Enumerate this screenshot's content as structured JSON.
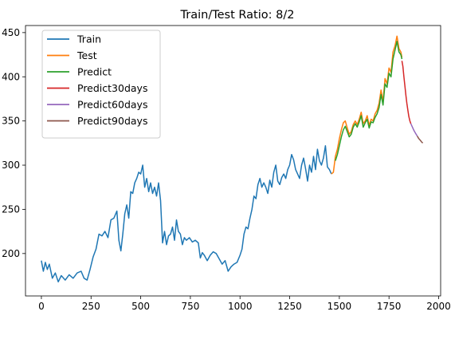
{
  "chart_data": {
    "type": "line",
    "title": "Train/Test Ratio: 8/2",
    "xlabel": "",
    "ylabel": "",
    "xlim": [
      -80,
      2010
    ],
    "ylim": [
      152,
      458
    ],
    "xticks": [
      0,
      250,
      500,
      750,
      1000,
      1250,
      1500,
      1750,
      2000
    ],
    "yticks": [
      200,
      250,
      300,
      350,
      400,
      450
    ],
    "grid": false,
    "legend_position": "top-left",
    "series": [
      {
        "name": "Train",
        "color": "#1f77b4",
        "points": [
          [
            0,
            192
          ],
          [
            10,
            180
          ],
          [
            20,
            190
          ],
          [
            30,
            182
          ],
          [
            40,
            188
          ],
          [
            55,
            172
          ],
          [
            70,
            178
          ],
          [
            85,
            168
          ],
          [
            100,
            175
          ],
          [
            120,
            170
          ],
          [
            140,
            176
          ],
          [
            160,
            172
          ],
          [
            180,
            178
          ],
          [
            200,
            180
          ],
          [
            215,
            172
          ],
          [
            230,
            170
          ],
          [
            245,
            182
          ],
          [
            260,
            196
          ],
          [
            275,
            205
          ],
          [
            290,
            222
          ],
          [
            305,
            220
          ],
          [
            320,
            225
          ],
          [
            335,
            218
          ],
          [
            350,
            238
          ],
          [
            365,
            240
          ],
          [
            380,
            248
          ],
          [
            390,
            215
          ],
          [
            400,
            203
          ],
          [
            410,
            222
          ],
          [
            420,
            245
          ],
          [
            430,
            255
          ],
          [
            440,
            240
          ],
          [
            450,
            270
          ],
          [
            460,
            268
          ],
          [
            470,
            280
          ],
          [
            480,
            285
          ],
          [
            490,
            292
          ],
          [
            500,
            290
          ],
          [
            510,
            300
          ],
          [
            520,
            275
          ],
          [
            530,
            285
          ],
          [
            540,
            270
          ],
          [
            550,
            280
          ],
          [
            560,
            268
          ],
          [
            570,
            275
          ],
          [
            580,
            265
          ],
          [
            590,
            280
          ],
          [
            600,
            260
          ],
          [
            610,
            212
          ],
          [
            620,
            225
          ],
          [
            630,
            210
          ],
          [
            640,
            220
          ],
          [
            650,
            222
          ],
          [
            660,
            230
          ],
          [
            670,
            215
          ],
          [
            680,
            238
          ],
          [
            690,
            225
          ],
          [
            700,
            222
          ],
          [
            710,
            210
          ],
          [
            720,
            218
          ],
          [
            730,
            215
          ],
          [
            745,
            218
          ],
          [
            760,
            213
          ],
          [
            775,
            215
          ],
          [
            790,
            212
          ],
          [
            800,
            195
          ],
          [
            810,
            201
          ],
          [
            820,
            198
          ],
          [
            835,
            192
          ],
          [
            850,
            198
          ],
          [
            865,
            202
          ],
          [
            880,
            200
          ],
          [
            895,
            194
          ],
          [
            910,
            188
          ],
          [
            925,
            192
          ],
          [
            940,
            180
          ],
          [
            955,
            185
          ],
          [
            970,
            188
          ],
          [
            985,
            190
          ],
          [
            1000,
            198
          ],
          [
            1010,
            205
          ],
          [
            1020,
            222
          ],
          [
            1030,
            230
          ],
          [
            1040,
            228
          ],
          [
            1050,
            240
          ],
          [
            1060,
            250
          ],
          [
            1070,
            265
          ],
          [
            1080,
            262
          ],
          [
            1090,
            278
          ],
          [
            1100,
            285
          ],
          [
            1110,
            275
          ],
          [
            1120,
            280
          ],
          [
            1130,
            275
          ],
          [
            1140,
            268
          ],
          [
            1150,
            283
          ],
          [
            1160,
            275
          ],
          [
            1170,
            292
          ],
          [
            1180,
            300
          ],
          [
            1190,
            282
          ],
          [
            1200,
            278
          ],
          [
            1210,
            286
          ],
          [
            1220,
            290
          ],
          [
            1230,
            285
          ],
          [
            1240,
            295
          ],
          [
            1250,
            300
          ],
          [
            1260,
            312
          ],
          [
            1270,
            306
          ],
          [
            1280,
            295
          ],
          [
            1290,
            290
          ],
          [
            1300,
            285
          ],
          [
            1310,
            300
          ],
          [
            1320,
            308
          ],
          [
            1330,
            296
          ],
          [
            1340,
            282
          ],
          [
            1350,
            300
          ],
          [
            1360,
            292
          ],
          [
            1370,
            310
          ],
          [
            1380,
            295
          ],
          [
            1390,
            318
          ],
          [
            1400,
            305
          ],
          [
            1410,
            300
          ],
          [
            1420,
            308
          ],
          [
            1430,
            322
          ],
          [
            1440,
            298
          ],
          [
            1450,
            295
          ],
          [
            1460,
            290
          ]
        ]
      },
      {
        "name": "Test",
        "color": "#ff7f0e",
        "points": [
          [
            1460,
            290
          ],
          [
            1470,
            292
          ],
          [
            1480,
            310
          ],
          [
            1490,
            318
          ],
          [
            1500,
            330
          ],
          [
            1510,
            340
          ],
          [
            1520,
            348
          ],
          [
            1530,
            350
          ],
          [
            1540,
            342
          ],
          [
            1550,
            335
          ],
          [
            1560,
            338
          ],
          [
            1570,
            346
          ],
          [
            1580,
            350
          ],
          [
            1590,
            346
          ],
          [
            1600,
            352
          ],
          [
            1610,
            360
          ],
          [
            1620,
            347
          ],
          [
            1630,
            350
          ],
          [
            1640,
            356
          ],
          [
            1650,
            345
          ],
          [
            1660,
            352
          ],
          [
            1670,
            350
          ],
          [
            1680,
            358
          ],
          [
            1690,
            362
          ],
          [
            1700,
            370
          ],
          [
            1710,
            385
          ],
          [
            1720,
            372
          ],
          [
            1730,
            398
          ],
          [
            1740,
            392
          ],
          [
            1750,
            410
          ],
          [
            1760,
            405
          ],
          [
            1770,
            428
          ],
          [
            1780,
            435
          ],
          [
            1790,
            446
          ],
          [
            1800,
            432
          ],
          [
            1810,
            428
          ],
          [
            1815,
            422
          ]
        ]
      },
      {
        "name": "Predict",
        "color": "#2ca02c",
        "points": [
          [
            1480,
            305
          ],
          [
            1490,
            312
          ],
          [
            1500,
            322
          ],
          [
            1510,
            332
          ],
          [
            1520,
            340
          ],
          [
            1530,
            344
          ],
          [
            1540,
            338
          ],
          [
            1550,
            332
          ],
          [
            1560,
            335
          ],
          [
            1570,
            343
          ],
          [
            1580,
            347
          ],
          [
            1590,
            343
          ],
          [
            1600,
            349
          ],
          [
            1610,
            356
          ],
          [
            1620,
            343
          ],
          [
            1630,
            348
          ],
          [
            1640,
            352
          ],
          [
            1650,
            342
          ],
          [
            1660,
            349
          ],
          [
            1670,
            348
          ],
          [
            1680,
            354
          ],
          [
            1690,
            358
          ],
          [
            1700,
            365
          ],
          [
            1710,
            380
          ],
          [
            1720,
            368
          ],
          [
            1730,
            392
          ],
          [
            1740,
            388
          ],
          [
            1750,
            404
          ],
          [
            1760,
            400
          ],
          [
            1770,
            420
          ],
          [
            1780,
            430
          ],
          [
            1790,
            440
          ],
          [
            1800,
            428
          ],
          [
            1810,
            425
          ],
          [
            1815,
            420
          ]
        ]
      },
      {
        "name": "Predict30days",
        "color": "#d62728",
        "points": [
          [
            1815,
            418
          ],
          [
            1820,
            412
          ],
          [
            1825,
            400
          ],
          [
            1830,
            390
          ],
          [
            1835,
            379
          ],
          [
            1840,
            370
          ],
          [
            1845,
            362
          ],
          [
            1850,
            355
          ],
          [
            1855,
            350
          ],
          [
            1860,
            347
          ]
        ]
      },
      {
        "name": "Predict60days",
        "color": "#9467bd",
        "points": [
          [
            1860,
            347
          ],
          [
            1868,
            343
          ],
          [
            1876,
            339
          ],
          [
            1884,
            336
          ],
          [
            1892,
            333
          ]
        ]
      },
      {
        "name": "Predict90days",
        "color": "#8c564b",
        "points": [
          [
            1892,
            333
          ],
          [
            1900,
            330
          ],
          [
            1908,
            328
          ],
          [
            1915,
            326
          ],
          [
            1920,
            325
          ]
        ]
      }
    ]
  }
}
